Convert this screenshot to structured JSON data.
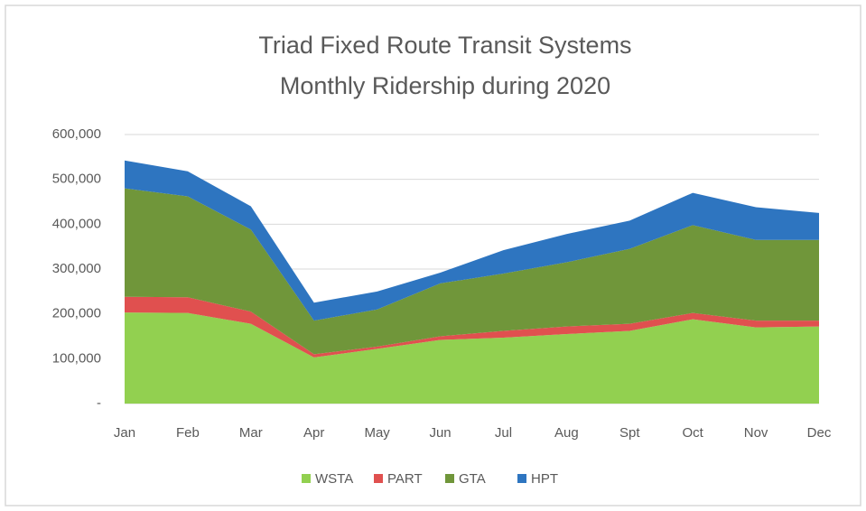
{
  "chart_data": {
    "type": "stacked_area",
    "title": "Triad Fixed Route Transit Systems",
    "subtitle": "Monthly Ridership during 2020",
    "categories": [
      "Jan",
      "Feb",
      "Mar",
      "Apr",
      "May",
      "Jun",
      "Jul",
      "Aug",
      "Spt",
      "Oct",
      "Nov",
      "Dec"
    ],
    "series": [
      {
        "name": "WSTA",
        "color": "#92d050",
        "values": [
          203000,
          202000,
          178000,
          103000,
          122000,
          142000,
          147000,
          155000,
          162000,
          188000,
          170000,
          172000
        ]
      },
      {
        "name": "PART",
        "color": "#e0504f",
        "values": [
          35000,
          35000,
          27000,
          7000,
          5000,
          8000,
          15000,
          17000,
          16000,
          14000,
          15000,
          13000
        ]
      },
      {
        "name": "GTA",
        "color": "#70963a",
        "values": [
          242000,
          225000,
          183000,
          75000,
          83000,
          118000,
          128000,
          143000,
          167000,
          196000,
          180000,
          180000
        ]
      },
      {
        "name": "HPT",
        "color": "#2e75c0",
        "values": [
          62000,
          56000,
          52000,
          40000,
          40000,
          24000,
          52000,
          63000,
          63000,
          72000,
          73000,
          60000
        ]
      }
    ],
    "ylim": [
      0,
      600000
    ],
    "yticks": [
      {
        "value": 0,
        "label": "-"
      },
      {
        "value": 100000,
        "label": "100,000"
      },
      {
        "value": 200000,
        "label": "200,000"
      },
      {
        "value": 300000,
        "label": "300,000"
      },
      {
        "value": 400000,
        "label": "400,000"
      },
      {
        "value": 500000,
        "label": "500,000"
      },
      {
        "value": 600000,
        "label": "600,000"
      }
    ],
    "grid": true
  }
}
